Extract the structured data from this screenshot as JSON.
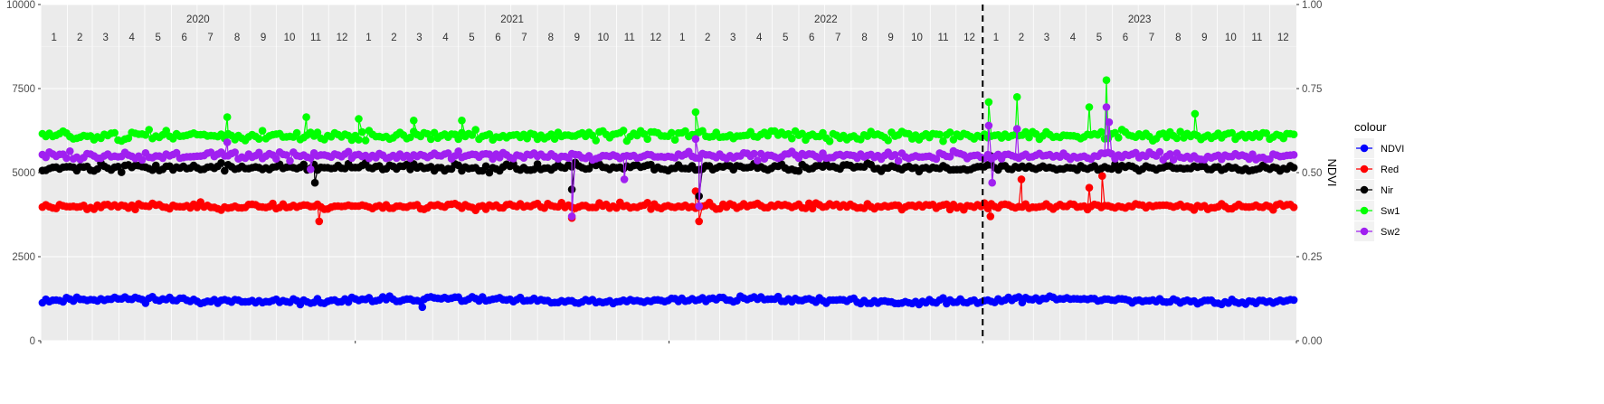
{
  "chart_data": {
    "type": "line",
    "x_axis": {
      "years": [
        "2020",
        "2021",
        "2022",
        "2023"
      ],
      "month_labels": [
        "1",
        "2",
        "3",
        "4",
        "5",
        "6",
        "7",
        "8",
        "9",
        "10",
        "11",
        "12"
      ]
    },
    "y_left": {
      "ylim": [
        0,
        10000
      ],
      "ticks": [
        0,
        2500,
        5000,
        7500,
        10000
      ],
      "tick_labels": [
        "0",
        "2500",
        "5000",
        "7500",
        "10000"
      ]
    },
    "y_right": {
      "label": "NDVI",
      "ylim": [
        0,
        1
      ],
      "ticks": [
        0,
        0.25,
        0.5,
        0.75,
        1
      ],
      "tick_labels": [
        "0.00",
        "0.25",
        "0.50",
        "0.75",
        "1.00"
      ]
    },
    "vline": {
      "date": "2023-01-01",
      "style": "dashed"
    },
    "legend": {
      "title": "colour",
      "placement": "right"
    },
    "grid": true,
    "series": [
      {
        "name": "NDVI",
        "axis": "right",
        "color": "#0000FF",
        "base": 0.12,
        "noise": 0.008,
        "seed": 11,
        "wave": 0.005,
        "spikes": [
          {
            "date": "2021-03-20",
            "value": 0.1
          }
        ]
      },
      {
        "name": "Red",
        "axis": "left",
        "color": "#FF0000",
        "base": 4000,
        "noise": 90,
        "seed": 23,
        "spikes": [
          {
            "date": "2020-11-20",
            "value": 3550
          },
          {
            "date": "2021-09-10",
            "value": 3650
          },
          {
            "date": "2022-02-05",
            "value": 3550
          },
          {
            "date": "2022-02-01",
            "value": 4450
          },
          {
            "date": "2023-01-10",
            "value": 3700
          },
          {
            "date": "2023-02-15",
            "value": 4800
          },
          {
            "date": "2023-05-05",
            "value": 4550
          },
          {
            "date": "2023-05-20",
            "value": 4900
          }
        ]
      },
      {
        "name": "Nir",
        "axis": "left",
        "color": "#000000",
        "base": 5150,
        "noise": 110,
        "seed": 37,
        "spikes": [
          {
            "date": "2020-11-15",
            "value": 4700
          },
          {
            "date": "2021-09-10",
            "value": 4500
          },
          {
            "date": "2022-02-05",
            "value": 4300
          },
          {
            "date": "2023-01-10",
            "value": 5500
          }
        ]
      },
      {
        "name": "Sw1",
        "axis": "left",
        "color": "#00FF00",
        "base": 6100,
        "noise": 140,
        "seed": 51,
        "spikes": [
          {
            "date": "2020-08-05",
            "value": 6650
          },
          {
            "date": "2020-11-05",
            "value": 6650
          },
          {
            "date": "2021-01-05",
            "value": 6600
          },
          {
            "date": "2021-03-10",
            "value": 6550
          },
          {
            "date": "2021-05-05",
            "value": 6550
          },
          {
            "date": "2022-02-01",
            "value": 6800
          },
          {
            "date": "2023-01-08",
            "value": 7100
          },
          {
            "date": "2023-02-10",
            "value": 7250
          },
          {
            "date": "2023-05-05",
            "value": 6950
          },
          {
            "date": "2023-05-25",
            "value": 7750
          },
          {
            "date": "2023-09-05",
            "value": 6750
          }
        ]
      },
      {
        "name": "Sw2",
        "axis": "left",
        "color": "#A020F0",
        "base": 5500,
        "noise": 120,
        "seed": 73,
        "spikes": [
          {
            "date": "2020-08-05",
            "value": 5900
          },
          {
            "date": "2020-11-10",
            "value": 5100
          },
          {
            "date": "2021-09-10",
            "value": 3700
          },
          {
            "date": "2021-11-10",
            "value": 4800
          },
          {
            "date": "2022-02-01",
            "value": 6000
          },
          {
            "date": "2022-02-05",
            "value": 4000
          },
          {
            "date": "2023-01-08",
            "value": 6400
          },
          {
            "date": "2023-01-12",
            "value": 4700
          },
          {
            "date": "2023-02-10",
            "value": 6300
          },
          {
            "date": "2023-05-25",
            "value": 6950
          },
          {
            "date": "2023-05-28",
            "value": 6500
          }
        ]
      }
    ]
  }
}
